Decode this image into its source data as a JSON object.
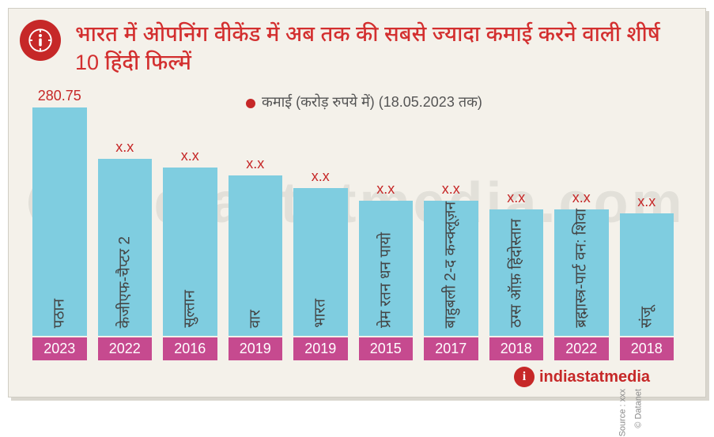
{
  "card": {
    "background_color": "#f4f1ea",
    "border_color": "#d0cdc4",
    "shadow_color": "#d9d6ce"
  },
  "header": {
    "badge_bg": "#c62828",
    "title": "भारत में ओपनिंग वीकेंड में अब तक की सबसे ज्यादा कमाई करने वाली शीर्ष 10 हिंदी फिल्में",
    "title_color": "#d32f2f",
    "title_fontsize": 27
  },
  "legend": {
    "dot_color": "#c62828",
    "text": "कमाई (करोड़ रुपये में) (18.05.2023 तक)",
    "text_color": "#555555",
    "fontsize": 18
  },
  "chart": {
    "type": "bar",
    "ymax": 300,
    "bar_color": "#7fcde0",
    "year_bg": "#c64a8f",
    "year_color": "#ffffff",
    "value_color": "#c62828",
    "value_fontsize": 18,
    "label_color": "#444444",
    "label_fontsize": 19,
    "bars": [
      {
        "label": "पठान",
        "year": "2023",
        "value": 280.75,
        "value_text": "280.75"
      },
      {
        "label": "केजीएफ-चैप्टर 2",
        "year": "2022",
        "value": 210,
        "value_text": "x.x"
      },
      {
        "label": "सुल्तान",
        "year": "2016",
        "value": 200,
        "value_text": "x.x"
      },
      {
        "label": "वार",
        "year": "2019",
        "value": 190,
        "value_text": "x.x"
      },
      {
        "label": "भारत",
        "year": "2019",
        "value": 175,
        "value_text": "x.x"
      },
      {
        "label": "प्रेम रतन धन पायो",
        "year": "2015",
        "value": 160,
        "value_text": "x.x"
      },
      {
        "label": "बाहुबली 2-द कन्क्लूज़न",
        "year": "2017",
        "value": 160,
        "value_text": "x.x"
      },
      {
        "label": "ठग्स ऑफ़ हिंदोस्तान",
        "year": "2018",
        "value": 150,
        "value_text": "x.x"
      },
      {
        "label": "ब्रह्मास्त्र-पार्ट वन: शिवा",
        "year": "2022",
        "value": 150,
        "value_text": "x.x"
      },
      {
        "label": "संजू",
        "year": "2018",
        "value": 145,
        "value_text": "x.x"
      }
    ]
  },
  "watermark": {
    "text": "indiastatmedia.com",
    "color_alpha": 0.07,
    "fontsize": 72
  },
  "footer": {
    "brand": "indiastatmedia",
    "brand_color": "#c62828",
    "source_label": "Source : xxx",
    "copyright": "© Datanet",
    "side_text_color": "#888888"
  }
}
